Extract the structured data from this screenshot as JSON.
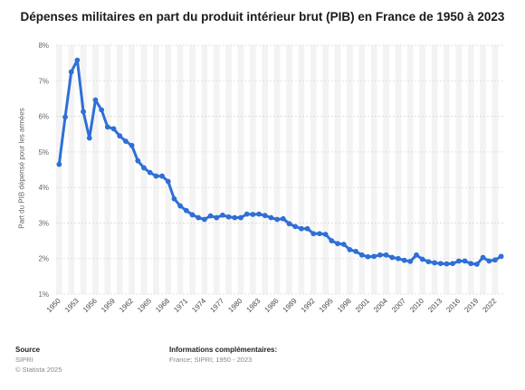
{
  "chart_data": {
    "type": "line",
    "title": "Dépenses militaires en part du produit intérieur brut (PIB) en France de 1950 à 2023",
    "ylabel": "Part du PIB dépensé pour les armées",
    "xlabel": "",
    "ylim": [
      1,
      8
    ],
    "yticks": [
      "1%",
      "2%",
      "3%",
      "4%",
      "5%",
      "6%",
      "7%",
      "8%"
    ],
    "xticks": [
      "1950",
      "1953",
      "1956",
      "1959",
      "1962",
      "1965",
      "1968",
      "1971",
      "1974",
      "1977",
      "1980",
      "1983",
      "1986",
      "1989",
      "1992",
      "1995",
      "1998",
      "2001",
      "2004",
      "2007",
      "2010",
      "2013",
      "2016",
      "2019",
      "2022"
    ],
    "grid": true,
    "line_color": "#2f6fd6",
    "x": [
      1950,
      1951,
      1952,
      1953,
      1954,
      1955,
      1956,
      1957,
      1958,
      1959,
      1960,
      1961,
      1962,
      1963,
      1964,
      1965,
      1966,
      1967,
      1968,
      1969,
      1970,
      1971,
      1972,
      1973,
      1974,
      1975,
      1976,
      1977,
      1978,
      1979,
      1980,
      1981,
      1982,
      1983,
      1984,
      1985,
      1986,
      1987,
      1988,
      1989,
      1990,
      1991,
      1992,
      1993,
      1994,
      1995,
      1996,
      1997,
      1998,
      1999,
      2000,
      2001,
      2002,
      2003,
      2004,
      2005,
      2006,
      2007,
      2008,
      2009,
      2010,
      2011,
      2012,
      2013,
      2014,
      2015,
      2016,
      2017,
      2018,
      2019,
      2020,
      2021,
      2022,
      2023
    ],
    "values": [
      4.65,
      5.98,
      7.25,
      7.58,
      6.13,
      5.39,
      6.46,
      6.18,
      5.7,
      5.65,
      5.45,
      5.3,
      5.18,
      4.75,
      4.55,
      4.42,
      4.32,
      4.32,
      4.17,
      3.68,
      3.48,
      3.35,
      3.23,
      3.15,
      3.1,
      3.2,
      3.15,
      3.22,
      3.17,
      3.15,
      3.15,
      3.25,
      3.24,
      3.25,
      3.21,
      3.15,
      3.1,
      3.12,
      2.98,
      2.9,
      2.84,
      2.84,
      2.7,
      2.7,
      2.68,
      2.5,
      2.42,
      2.4,
      2.25,
      2.2,
      2.1,
      2.05,
      2.06,
      2.1,
      2.1,
      2.03,
      2.0,
      1.95,
      1.92,
      2.1,
      1.98,
      1.91,
      1.88,
      1.86,
      1.85,
      1.86,
      1.93,
      1.93,
      1.86,
      1.84,
      2.03,
      1.93,
      1.96,
      2.06
    ]
  },
  "footer": {
    "source_heading": "Source",
    "source_lines": [
      "SIPRI",
      "© Statista 2025"
    ],
    "info_heading": "Informations complémentaires:",
    "info_line": "France; SIPRI; 1950 - 2023"
  }
}
